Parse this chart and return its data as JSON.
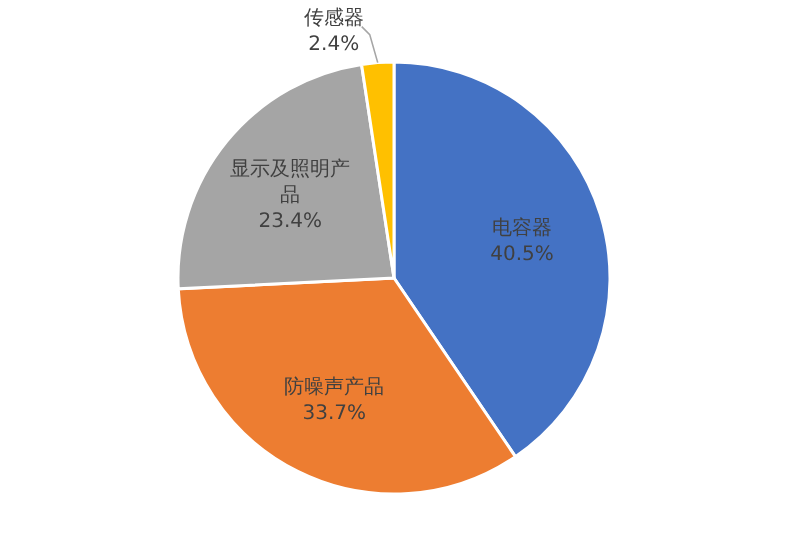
{
  "chart_data": {
    "type": "pie",
    "categories": [
      "电容器",
      "防噪声产品",
      "显示及照明产品",
      "传感器"
    ],
    "values": [
      40.5,
      33.7,
      23.4,
      2.4
    ],
    "value_labels": [
      "40.5%",
      "33.7%",
      "23.4%",
      "2.4%"
    ],
    "colors": [
      "#4472c4",
      "#ed7d31",
      "#a5a5a5",
      "#ffc000"
    ],
    "legend": false
  }
}
